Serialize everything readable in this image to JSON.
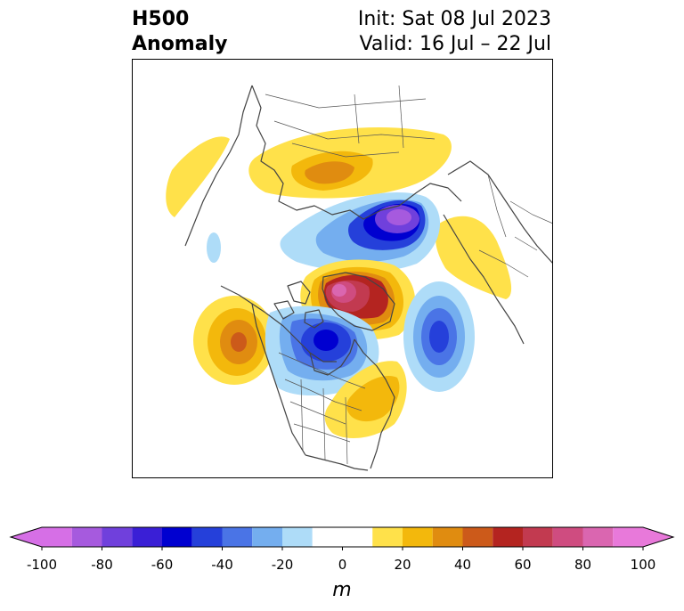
{
  "title": {
    "left_line1": "H500",
    "left_line2": "Anomaly",
    "right_line1": "Init: Sat 08 Jul 2023",
    "right_line2": "Valid: 16 Jul – 22 Jul"
  },
  "map": {
    "region": "Northern Hemisphere polar view (North America / Arctic / Greenland)"
  },
  "colorbar": {
    "unit_label": "m",
    "min": -100,
    "max": 100,
    "extend": "both",
    "ticks": [
      "-100",
      "-80",
      "-60",
      "-40",
      "-20",
      "0",
      "20",
      "40",
      "60",
      "80",
      "100"
    ],
    "tick_values": [
      -100,
      -80,
      -60,
      -40,
      -20,
      0,
      20,
      40,
      60,
      80,
      100
    ],
    "bins": [
      -100,
      -90,
      -80,
      -70,
      -60,
      -50,
      -40,
      -30,
      -20,
      -10,
      10,
      20,
      30,
      40,
      50,
      60,
      70,
      80,
      90,
      100
    ],
    "colors": [
      "#d66fe6",
      "#a65ade",
      "#7040dc",
      "#3a1fd6",
      "#0000d0",
      "#2540da",
      "#4a74e6",
      "#74aeef",
      "#aedcf8",
      "#ffffff",
      "#ffe14a",
      "#f3b80c",
      "#e08c10",
      "#cc5a1a",
      "#b42420",
      "#c23a50",
      "#cf4c80",
      "#da66b0",
      "#e879da"
    ],
    "under_color": "#d66fe6",
    "over_color": "#e879da"
  }
}
